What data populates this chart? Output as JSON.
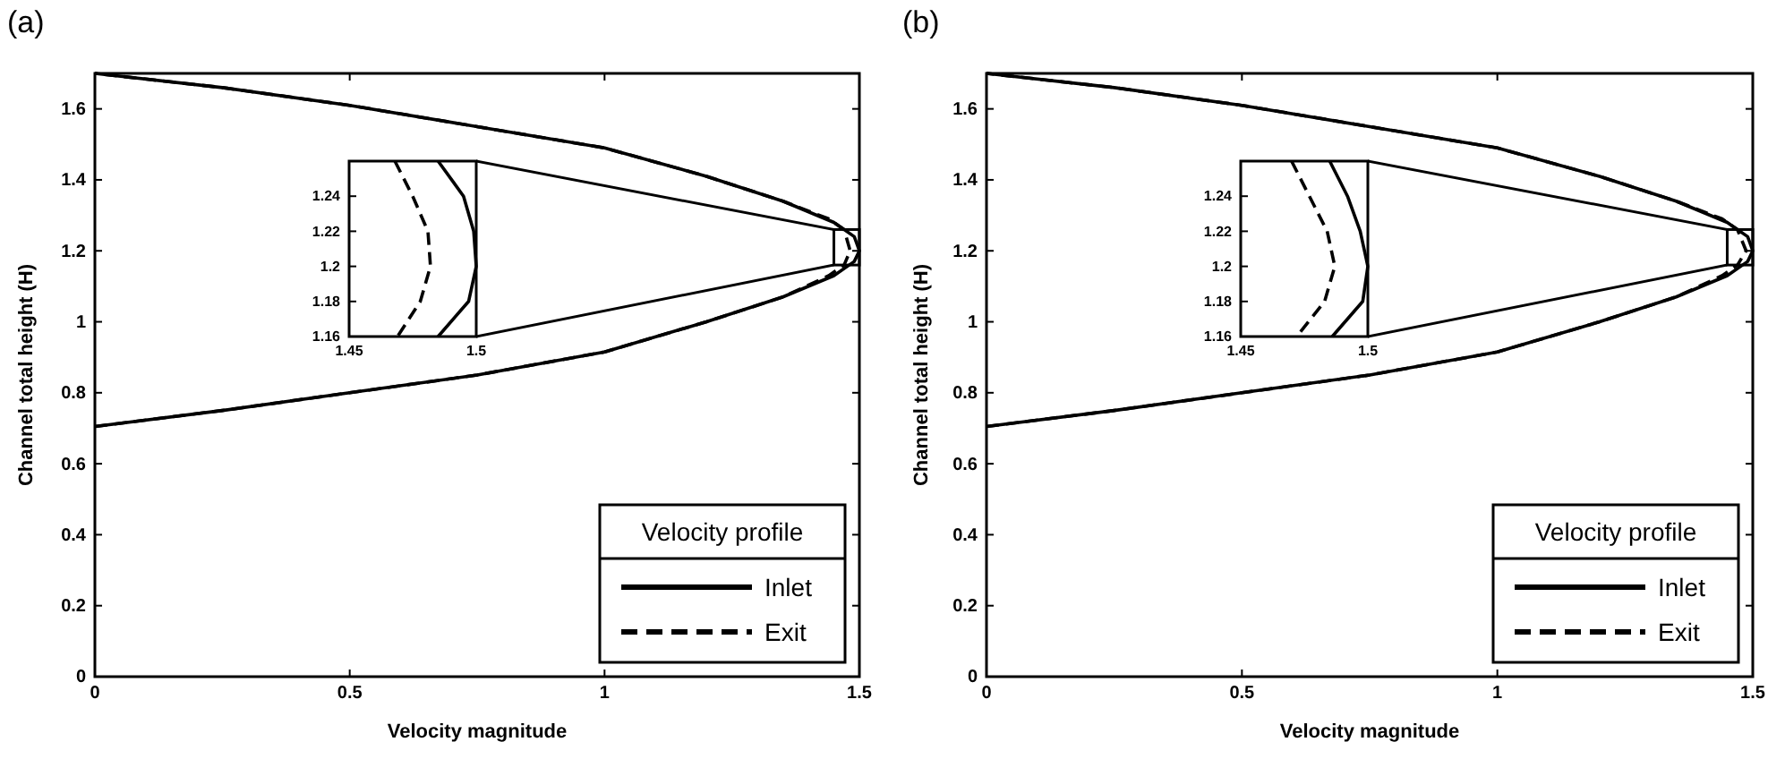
{
  "chart_data": [
    {
      "type": "line",
      "title": "(a)",
      "xlabel": "Velocity magnitude",
      "ylabel": "Channel total height (H)",
      "legend_title": "Velocity profile",
      "legend": "bottom right",
      "xlim": [
        0,
        1.5
      ],
      "ylim": [
        0,
        1.7
      ],
      "xticks": [
        0,
        0.5,
        1,
        1.5
      ],
      "yticks": [
        0,
        0.2,
        0.4,
        0.6,
        0.8,
        1,
        1.2,
        1.4,
        1.6
      ],
      "series": [
        {
          "name": "Inlet",
          "color": "#000000",
          "line_style": "solid",
          "x": [
            0,
            0.25,
            0.5,
            0.75,
            1.0,
            1.2,
            1.35,
            1.45,
            1.49,
            1.5,
            1.49,
            1.45,
            1.35,
            1.2,
            1.0,
            0.75,
            0.5,
            0.25,
            0
          ],
          "values": [
            0.705,
            0.75,
            0.8,
            0.85,
            0.915,
            1.0,
            1.07,
            1.13,
            1.17,
            1.2,
            1.24,
            1.28,
            1.34,
            1.41,
            1.49,
            1.55,
            1.61,
            1.66,
            1.7
          ]
        },
        {
          "name": "Exit",
          "color": "#000000",
          "line_style": "dashed",
          "x": [
            0,
            0.25,
            0.5,
            0.75,
            1.0,
            1.2,
            1.35,
            1.44,
            1.47,
            1.482,
            1.47,
            1.44,
            1.35,
            1.2,
            1.0,
            0.75,
            0.5,
            0.25,
            0
          ],
          "values": [
            0.705,
            0.75,
            0.8,
            0.85,
            0.915,
            1.0,
            1.07,
            1.13,
            1.16,
            1.2,
            1.26,
            1.29,
            1.34,
            1.41,
            1.49,
            1.55,
            1.61,
            1.66,
            1.7
          ]
        }
      ]
    },
    {
      "type": "line",
      "legend": false,
      "xlim": [
        1.45,
        1.5
      ],
      "ylim": [
        1.16,
        1.26
      ],
      "xticks": [
        1.45,
        1.5
      ],
      "yticks": [
        1.16,
        1.18,
        1.2,
        1.22,
        1.24
      ],
      "series": [
        {
          "color": "#000000",
          "line_style": "solid",
          "x": [
            1.485,
            1.495,
            1.499,
            1.5,
            1.497,
            1.485
          ],
          "values": [
            1.26,
            1.24,
            1.22,
            1.2,
            1.18,
            1.16
          ]
        },
        {
          "color": "#000000",
          "line_style": "dashed",
          "x": [
            1.468,
            1.475,
            1.481,
            1.482,
            1.478,
            1.469
          ],
          "values": [
            1.26,
            1.24,
            1.22,
            1.2,
            1.18,
            1.16
          ]
        }
      ]
    },
    {
      "type": "line",
      "title": "(b)",
      "xlabel": "Velocity magnitude",
      "ylabel": "Channel total height (H)",
      "legend_title": "Velocity profile",
      "legend": "bottom right",
      "xlim": [
        0,
        1.5
      ],
      "ylim": [
        0,
        1.7
      ],
      "xticks": [
        0,
        0.5,
        1,
        1.5
      ],
      "yticks": [
        0,
        0.2,
        0.4,
        0.6,
        0.8,
        1,
        1.2,
        1.4,
        1.6
      ],
      "series": [
        {
          "name": "Inlet",
          "color": "#000000",
          "line_style": "solid",
          "x": [
            0,
            0.25,
            0.5,
            0.75,
            1.0,
            1.2,
            1.35,
            1.45,
            1.49,
            1.5,
            1.49,
            1.45,
            1.35,
            1.2,
            1.0,
            0.75,
            0.5,
            0.25,
            0
          ],
          "values": [
            0.705,
            0.75,
            0.8,
            0.85,
            0.915,
            1.0,
            1.07,
            1.13,
            1.17,
            1.2,
            1.24,
            1.28,
            1.34,
            1.41,
            1.49,
            1.55,
            1.61,
            1.66,
            1.7
          ]
        },
        {
          "name": "Exit",
          "color": "#000000",
          "line_style": "dashed",
          "x": [
            0,
            0.25,
            0.5,
            0.75,
            1.0,
            1.2,
            1.35,
            1.44,
            1.47,
            1.487,
            1.47,
            1.44,
            1.35,
            1.2,
            1.0,
            0.75,
            0.5,
            0.25,
            0
          ],
          "values": [
            0.705,
            0.75,
            0.8,
            0.85,
            0.915,
            1.0,
            1.07,
            1.13,
            1.16,
            1.2,
            1.26,
            1.29,
            1.34,
            1.41,
            1.49,
            1.55,
            1.61,
            1.66,
            1.7
          ]
        }
      ]
    },
    {
      "type": "line",
      "legend": false,
      "xlim": [
        1.45,
        1.5
      ],
      "ylim": [
        1.16,
        1.26
      ],
      "xticks": [
        1.45,
        1.5
      ],
      "yticks": [
        1.16,
        1.18,
        1.2,
        1.22,
        1.24
      ],
      "series": [
        {
          "color": "#000000",
          "line_style": "solid",
          "x": [
            1.485,
            1.492,
            1.497,
            1.5,
            1.498,
            1.486
          ],
          "values": [
            1.26,
            1.24,
            1.22,
            1.2,
            1.18,
            1.16
          ]
        },
        {
          "color": "#000000",
          "line_style": "dashed",
          "x": [
            1.47,
            1.477,
            1.484,
            1.487,
            1.483,
            1.472
          ],
          "values": [
            1.26,
            1.24,
            1.22,
            1.2,
            1.18,
            1.16
          ]
        }
      ]
    }
  ]
}
